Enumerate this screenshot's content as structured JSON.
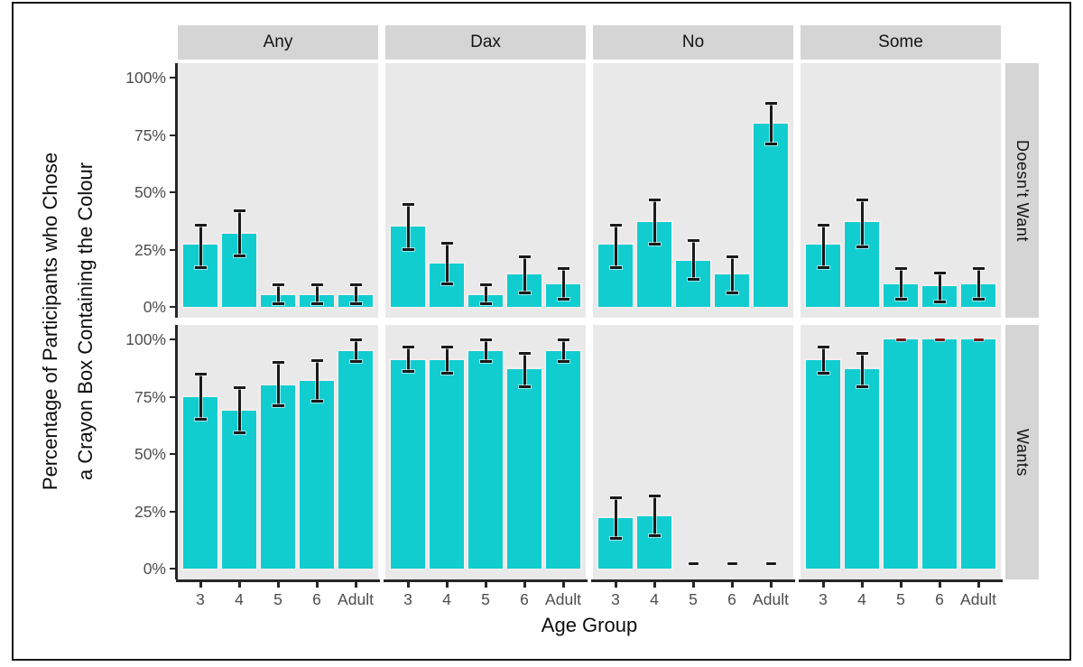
{
  "figure": {
    "x_axis_title": "Age Group",
    "y_axis_title_line1": "Percentage of Participants who Chose",
    "y_axis_title_line2": "a Crayon Box Containing the Colour"
  },
  "chart_data": {
    "type": "bar",
    "title": "",
    "xlabel": "Age Group",
    "ylabel": "Percentage of Participants who Chose a Crayon Box Containing the Colour",
    "facet_columns": [
      "Any",
      "Dax",
      "No",
      "Some"
    ],
    "facet_rows": [
      "Doesn't Want",
      "Wants"
    ],
    "categories": [
      "3",
      "4",
      "5",
      "6",
      "Adult"
    ],
    "y_ticks": [
      "0%",
      "25%",
      "50%",
      "75%",
      "100%"
    ],
    "y_tick_values": [
      0,
      25,
      50,
      75,
      100
    ],
    "ylim": [
      0,
      100
    ],
    "grid": "off",
    "legend": "none",
    "colors": {
      "bar_fill": "#12cdd0",
      "bar_outline": "#fdefef",
      "error_bar": "#1a1a1a",
      "zero_marker": "#1a1a1a",
      "full_marker": "#7a1a1a",
      "panel_bg": "#e9e9e9",
      "strip_bg": "#d5d5d5",
      "axis_text": "#4d4d4d",
      "title_text": "#0d0d0d"
    },
    "panels": [
      {
        "row": "Doesn't Want",
        "column": "Any",
        "values": [
          27,
          32,
          5,
          5,
          5
        ],
        "err_low": [
          17,
          22,
          1,
          1,
          1
        ],
        "err_high": [
          36,
          42,
          10,
          10,
          10
        ]
      },
      {
        "row": "Doesn't Want",
        "column": "Dax",
        "values": [
          35,
          19,
          5,
          14,
          10
        ],
        "err_low": [
          25,
          10,
          1,
          6,
          3
        ],
        "err_high": [
          45,
          28,
          10,
          22,
          17
        ]
      },
      {
        "row": "Doesn't Want",
        "column": "No",
        "values": [
          27,
          37,
          20,
          14,
          80
        ],
        "err_low": [
          17,
          27,
          12,
          6,
          71
        ],
        "err_high": [
          36,
          47,
          29,
          22,
          89
        ]
      },
      {
        "row": "Doesn't Want",
        "column": "Some",
        "values": [
          27,
          37,
          10,
          9,
          10
        ],
        "err_low": [
          17,
          26,
          3,
          2,
          3
        ],
        "err_high": [
          36,
          47,
          17,
          15,
          17
        ]
      },
      {
        "row": "Wants",
        "column": "Any",
        "values": [
          75,
          69,
          80,
          82,
          95
        ],
        "err_low": [
          65,
          59,
          71,
          73,
          90
        ],
        "err_high": [
          85,
          79,
          90,
          91,
          100
        ]
      },
      {
        "row": "Wants",
        "column": "Dax",
        "values": [
          91,
          91,
          95,
          87,
          95
        ],
        "err_low": [
          86,
          85,
          90,
          79,
          90
        ],
        "err_high": [
          97,
          97,
          100,
          94,
          100
        ]
      },
      {
        "row": "Wants",
        "column": "No",
        "values": [
          22,
          23,
          0,
          0,
          0
        ],
        "err_low": [
          13,
          14,
          0,
          0,
          0
        ],
        "err_high": [
          31,
          32,
          0,
          0,
          0
        ]
      },
      {
        "row": "Wants",
        "column": "Some",
        "values": [
          91,
          87,
          100,
          100,
          100
        ],
        "err_low": [
          85,
          79,
          100,
          100,
          100
        ],
        "err_high": [
          97,
          94,
          100,
          100,
          100
        ]
      }
    ]
  }
}
